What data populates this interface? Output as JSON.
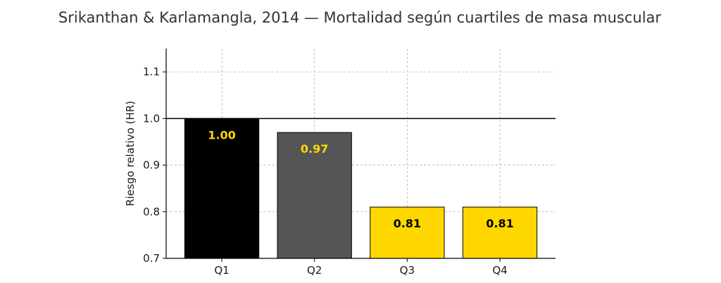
{
  "chart_data": {
    "type": "bar",
    "title": "Srikanthan & Karlamangla, 2014 — Mortalidad según cuartiles de masa muscular",
    "xlabel": "",
    "ylabel": "Riesgo relativo (HR)",
    "categories": [
      "Q1",
      "Q2",
      "Q3",
      "Q4"
    ],
    "values": [
      1.0,
      0.97,
      0.81,
      0.81
    ],
    "value_labels": [
      "1.00",
      "0.97",
      "0.81",
      "0.81"
    ],
    "bar_colors": [
      "#000000",
      "#555555",
      "#FFD700",
      "#FFD700"
    ],
    "label_colors": [
      "#FFD700",
      "#FFD700",
      "#000000",
      "#000000"
    ],
    "ylim": [
      0.7,
      1.15
    ],
    "yticks": [
      0.7,
      0.8,
      0.9,
      1.0,
      1.1
    ],
    "ytick_labels": [
      "0.7",
      "0.8",
      "0.9",
      "1.0",
      "1.1"
    ],
    "reference_line": 1.0,
    "grid": true,
    "grid_style": "dashed"
  }
}
